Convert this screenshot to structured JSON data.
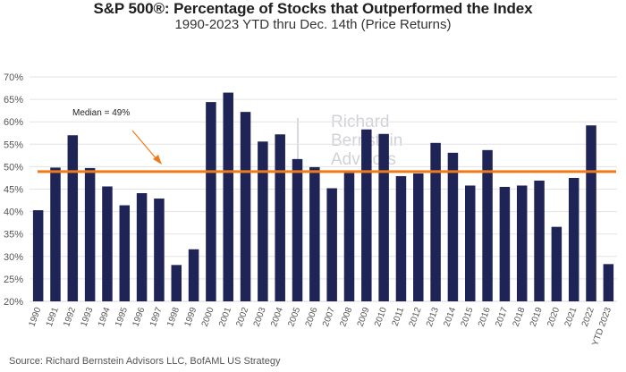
{
  "header": {
    "title": "S&P 500®:  Percentage of Stocks that Outperformed the Index",
    "subtitle": "1990-2023 YTD thru Dec. 14th (Price Returns)"
  },
  "watermark": {
    "lines": [
      "Richard",
      "Bernstein",
      "Advisors"
    ]
  },
  "footer": {
    "source": "Source: Richard Bernstein Advisors LLC, BofAML US Strategy"
  },
  "colors": {
    "bar": "#1f2456",
    "median": "#f07a1a",
    "grid": "#e3e3e3",
    "text": "#555555"
  },
  "chart_data": {
    "type": "bar",
    "categories": [
      "1990",
      "1991",
      "1992",
      "1993",
      "1994",
      "1995",
      "1996",
      "1997",
      "1998",
      "1999",
      "2000",
      "2001",
      "2002",
      "2003",
      "2004",
      "2005",
      "2006",
      "2007",
      "2008",
      "2009",
      "2010",
      "2011",
      "2012",
      "2013",
      "2014",
      "2015",
      "2016",
      "2017",
      "2018",
      "2019",
      "2020",
      "2021",
      "2022",
      "YTD 2023"
    ],
    "values": [
      40.3,
      49.8,
      57.0,
      49.7,
      45.6,
      41.4,
      44.1,
      42.9,
      28.1,
      31.6,
      64.4,
      66.5,
      62.2,
      55.6,
      57.2,
      51.7,
      49.9,
      45.2,
      48.6,
      58.3,
      57.3,
      47.9,
      48.5,
      55.3,
      53.1,
      45.8,
      53.7,
      45.5,
      45.8,
      46.9,
      36.6,
      47.5,
      59.2,
      28.3
    ],
    "ylim": [
      20,
      70
    ],
    "yticks": [
      "20%",
      "25%",
      "30%",
      "35%",
      "40%",
      "45%",
      "50%",
      "55%",
      "60%",
      "65%",
      "70%"
    ],
    "ytick_values": [
      20,
      25,
      30,
      35,
      40,
      45,
      50,
      55,
      60,
      65,
      70
    ],
    "median": 48.9,
    "median_label": "Median = 49%",
    "grid": true
  }
}
